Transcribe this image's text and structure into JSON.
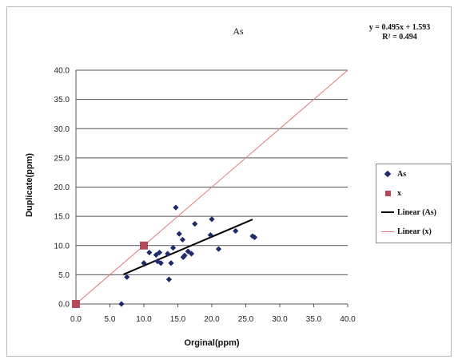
{
  "chart_data": {
    "type": "scatter",
    "title": "As",
    "xlabel": "Orginal(ppm)",
    "ylabel": "Duplicate(ppm)",
    "xlim": [
      0,
      40
    ],
    "ylim": [
      0,
      40
    ],
    "x_ticks": [
      "0.0",
      "5.0",
      "10.0",
      "15.0",
      "20.0",
      "25.0",
      "30.0",
      "35.0",
      "40.0"
    ],
    "y_ticks": [
      "0.0",
      "5.0",
      "10.0",
      "15.0",
      "20.0",
      "25.0",
      "30.0",
      "35.0",
      "40.0"
    ],
    "grid": "horizontal",
    "equation": "y = 0.495x + 1.593",
    "r_squared": "R² = 0.494",
    "legend_position": "right",
    "series": [
      {
        "name": "As",
        "marker": "diamond",
        "color": "#1f2a6b",
        "points": [
          [
            6.7,
            0.0
          ],
          [
            7.5,
            4.6
          ],
          [
            10.0,
            7.0
          ],
          [
            10.8,
            8.8
          ],
          [
            11.8,
            8.4
          ],
          [
            12.0,
            7.3
          ],
          [
            12.3,
            8.8
          ],
          [
            12.5,
            7.0
          ],
          [
            13.5,
            8.6
          ],
          [
            13.7,
            4.2
          ],
          [
            14.0,
            7.0
          ],
          [
            14.3,
            9.6
          ],
          [
            14.7,
            16.5
          ],
          [
            15.2,
            12.0
          ],
          [
            15.7,
            11.0
          ],
          [
            15.8,
            8.0
          ],
          [
            16.0,
            8.3
          ],
          [
            16.5,
            9.0
          ],
          [
            17.0,
            8.6
          ],
          [
            17.5,
            13.7
          ],
          [
            20.0,
            14.5
          ],
          [
            19.8,
            11.8
          ],
          [
            21.0,
            9.4
          ],
          [
            23.5,
            12.5
          ],
          [
            26.0,
            11.6
          ],
          [
            26.3,
            11.4
          ]
        ]
      },
      {
        "name": "x",
        "marker": "square",
        "color": "#b5495b",
        "points": [
          [
            0.0,
            0.0
          ],
          [
            10.0,
            10.0
          ]
        ]
      }
    ],
    "trendlines": [
      {
        "name": "Linear (As)",
        "color": "#000000",
        "x_start": 7.0,
        "x_end": 26.0,
        "slope": 0.495,
        "intercept": 1.593
      },
      {
        "name": "Linear (x)",
        "color": "#e07a7a",
        "x_start": 0.0,
        "x_end": 40.0,
        "slope": 1.0,
        "intercept": 0.0
      }
    ]
  },
  "legend": {
    "items": [
      {
        "label": "As"
      },
      {
        "label": "x"
      },
      {
        "label": "Linear (As)"
      },
      {
        "label": "Linear (x)"
      }
    ]
  }
}
